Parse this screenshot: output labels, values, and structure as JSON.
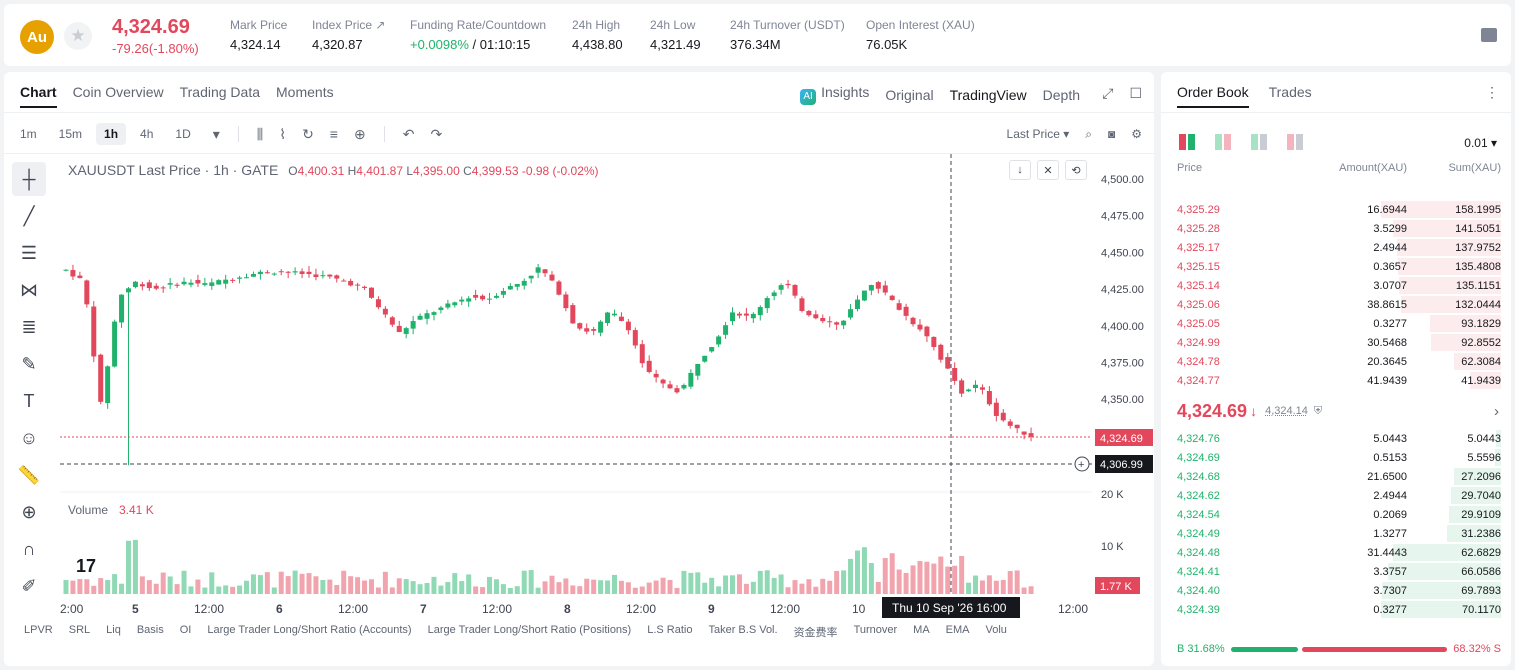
{
  "header": {
    "coin_symbol": "Au",
    "last_price": "4,324.69",
    "change": "-79.26(-1.80%)",
    "stats": [
      {
        "label": "Mark Price",
        "value": "4,324.14"
      },
      {
        "label": "Index Price ↗",
        "value": "4,320.87"
      },
      {
        "label": "Funding Rate/Countdown",
        "value_up": "+0.0098%",
        "value": " / 01:10:15"
      },
      {
        "label": "24h High",
        "value": "4,438.80"
      },
      {
        "label": "24h Low",
        "value": "4,321.49"
      },
      {
        "label": "24h Turnover (USDT)",
        "value": "376.34M"
      },
      {
        "label": "Open Interest (XAU)",
        "value": "76.05K"
      }
    ]
  },
  "chart_tabs": [
    "Chart",
    "Coin Overview",
    "Trading Data",
    "Moments"
  ],
  "view_tabs": {
    "insights": "Insights",
    "original": "Original",
    "tradingview": "TradingView",
    "depth": "Depth"
  },
  "timeframes": [
    "1m",
    "15m",
    "1h",
    "4h",
    "1D"
  ],
  "price_type": "Last Price",
  "legend": {
    "title": "XAUUSDT Last Price · 1h · GATE",
    "o_label": "O",
    "o": "4,400.31",
    "h_label": "H",
    "h": "4,401.87",
    "l_label": "L",
    "l": "4,395.00",
    "c_label": "C",
    "c": "4,399.53",
    "chg": "-0.98 (-0.02%)"
  },
  "volume_legend": {
    "label": "Volume",
    "value": "3.41 K"
  },
  "price_axis": [
    "4,500.00",
    "4,475.00",
    "4,450.00",
    "4,425.00",
    "4,400.00",
    "4,375.00",
    "4,350.00"
  ],
  "volume_axis": [
    "20 K",
    "10 K"
  ],
  "current_price_tag": "4,324.69",
  "crosshair_price_tag": "4,306.99",
  "volume_tag": "1.77 K",
  "crosshair_time": "Thu 10 Sep '26   16:00",
  "time_axis": [
    "2:00",
    "5",
    "12:00",
    "6",
    "12:00",
    "7",
    "12:00",
    "8",
    "12:00",
    "9",
    "12:00",
    "10",
    "12:00"
  ],
  "indicators": [
    "LPVR",
    "SRL",
    "Liq",
    "Basis",
    "OI",
    "Large Trader Long/Short Ratio (Accounts)",
    "Large Trader Long/Short Ratio (Positions)",
    "L.S Ratio",
    "Taker B.S Vol.",
    "资金费率",
    "Turnover",
    "MA",
    "EMA",
    "Volu"
  ],
  "colors": {
    "up": "#20b26c",
    "down": "#e2475b",
    "brand": "#e6a100"
  },
  "chart_data": {
    "type": "line",
    "title": "",
    "series": [
      {
        "values": [
          4438,
          4430,
          4345,
          4420,
          4430,
          4425,
          4428,
          4430,
          4428,
          4431,
          4434,
          4436,
          4437,
          4436,
          4435,
          4433,
          4430,
          4425,
          4410,
          4395,
          4405,
          4410,
          4415,
          4420,
          4418,
          4425,
          4430,
          4440,
          4425,
          4400,
          4395,
          4410,
          4400,
          4370,
          4360,
          4355,
          4375,
          4390,
          4410,
          4405,
          4420,
          4430,
          4410,
          4405,
          4400,
          4415,
          4430,
          4418,
          4405,
          4395,
          4375,
          4355,
          4360,
          4340,
          4330,
          4325
        ]
      }
    ],
    "ylim": [
      4300,
      4500
    ]
  },
  "order_book": {
    "tabs": [
      "Order Book",
      "Trades"
    ],
    "tick": "0.01",
    "headers": [
      "Price",
      "Amount(XAU)",
      "Sum(XAU)"
    ],
    "asks": [
      {
        "price": "4,325.29",
        "amount": "16.6944",
        "sum": "158.1995",
        "depth": 1.0
      },
      {
        "price": "4,325.28",
        "amount": "3.5299",
        "sum": "141.5051",
        "depth": 0.9
      },
      {
        "price": "4,325.17",
        "amount": "2.4944",
        "sum": "137.9752",
        "depth": 0.87
      },
      {
        "price": "4,325.15",
        "amount": "0.3657",
        "sum": "135.4808",
        "depth": 0.86
      },
      {
        "price": "4,325.14",
        "amount": "3.0707",
        "sum": "135.1151",
        "depth": 0.85
      },
      {
        "price": "4,325.06",
        "amount": "38.8615",
        "sum": "132.0444",
        "depth": 0.83
      },
      {
        "price": "4,325.05",
        "amount": "0.3277",
        "sum": "93.1829",
        "depth": 0.59
      },
      {
        "price": "4,324.99",
        "amount": "30.5468",
        "sum": "92.8552",
        "depth": 0.58
      },
      {
        "price": "4,324.78",
        "amount": "20.3645",
        "sum": "62.3084",
        "depth": 0.39
      },
      {
        "price": "4,324.77",
        "amount": "41.9439",
        "sum": "41.9439",
        "depth": 0.26
      }
    ],
    "mid_price": "4,324.69",
    "mid_arrow": "↓",
    "mark_price": "4,324.14",
    "bids": [
      {
        "price": "4,324.76",
        "amount": "5.0443",
        "sum": "5.0443",
        "depth": 0.04
      },
      {
        "price": "4,324.69",
        "amount": "0.5153",
        "sum": "5.5596",
        "depth": 0.05
      },
      {
        "price": "4,324.68",
        "amount": "21.6500",
        "sum": "27.2096",
        "depth": 0.39
      },
      {
        "price": "4,324.62",
        "amount": "2.4944",
        "sum": "29.7040",
        "depth": 0.42
      },
      {
        "price": "4,324.54",
        "amount": "0.2069",
        "sum": "29.9109",
        "depth": 0.43
      },
      {
        "price": "4,324.49",
        "amount": "1.3277",
        "sum": "31.2386",
        "depth": 0.45
      },
      {
        "price": "4,324.48",
        "amount": "31.4443",
        "sum": "62.6829",
        "depth": 0.9
      },
      {
        "price": "4,324.41",
        "amount": "3.3757",
        "sum": "66.0586",
        "depth": 0.94
      },
      {
        "price": "4,324.40",
        "amount": "3.7307",
        "sum": "69.7893",
        "depth": 0.99
      },
      {
        "price": "4,324.39",
        "amount": "0.3277",
        "sum": "70.1170",
        "depth": 1.0
      }
    ],
    "buy_ratio": "B 31.68%",
    "sell_ratio": "68.32% S",
    "buy_fraction": 0.3168
  }
}
